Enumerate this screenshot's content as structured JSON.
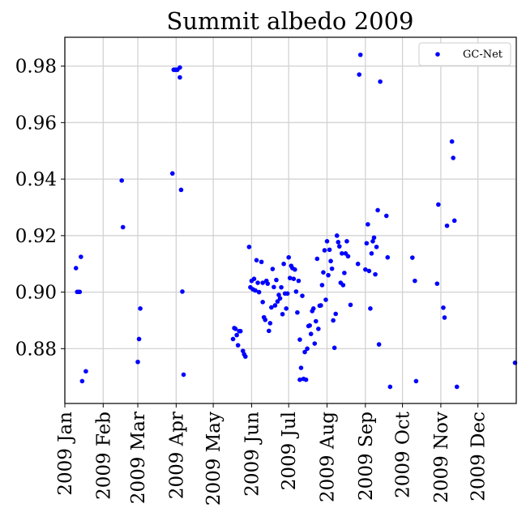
{
  "chart_data": {
    "type": "scatter",
    "title": "Summit albedo 2009",
    "xlabel": "",
    "ylabel": "",
    "xlim": [
      "2009-01-01",
      "2009-12-31"
    ],
    "ylim": [
      0.8606,
      0.9902
    ],
    "grid": true,
    "legend_position": "top-right",
    "x_ticks": [
      {
        "date": "2009-01-01",
        "label": "2009 Jan"
      },
      {
        "date": "2009-02-01",
        "label": "2009 Feb"
      },
      {
        "date": "2009-03-01",
        "label": "2009 Mar"
      },
      {
        "date": "2009-04-01",
        "label": "2009 Apr"
      },
      {
        "date": "2009-05-01",
        "label": "2009 May"
      },
      {
        "date": "2009-06-01",
        "label": "2009 Jun"
      },
      {
        "date": "2009-07-01",
        "label": "2009 Jul"
      },
      {
        "date": "2009-08-01",
        "label": "2009 Aug"
      },
      {
        "date": "2009-09-01",
        "label": "2009 Sep"
      },
      {
        "date": "2009-10-01",
        "label": "2009 Oct"
      },
      {
        "date": "2009-11-01",
        "label": "2009 Nov"
      },
      {
        "date": "2009-12-01",
        "label": "2009 Dec"
      }
    ],
    "y_ticks": [
      {
        "value": 0.88,
        "label": "0.88"
      },
      {
        "value": 0.9,
        "label": "0.90"
      },
      {
        "value": 0.92,
        "label": "0.92"
      },
      {
        "value": 0.94,
        "label": "0.94"
      },
      {
        "value": 0.96,
        "label": "0.96"
      },
      {
        "value": 0.98,
        "label": "0.98"
      }
    ],
    "series": [
      {
        "name": "GC-Net",
        "color": "#0000ff",
        "points": [
          [
            "2009-01-10",
            0.9085
          ],
          [
            "2009-01-11",
            0.9001
          ],
          [
            "2009-01-12",
            0.9001
          ],
          [
            "2009-01-13",
            0.9001
          ],
          [
            "2009-01-14",
            0.9125
          ],
          [
            "2009-01-15",
            0.8685
          ],
          [
            "2009-01-18",
            0.872
          ],
          [
            "2009-02-16",
            0.9395
          ],
          [
            "2009-02-17",
            0.923
          ],
          [
            "2009-03-01",
            0.8753
          ],
          [
            "2009-03-02",
            0.8834
          ],
          [
            "2009-03-03",
            0.8942
          ],
          [
            "2009-03-29",
            0.942
          ],
          [
            "2009-03-30",
            0.9787
          ],
          [
            "2009-03-31",
            0.9787
          ],
          [
            "2009-04-01",
            0.9787
          ],
          [
            "2009-04-02",
            0.9787
          ],
          [
            "2009-04-04",
            0.9795
          ],
          [
            "2009-04-04",
            0.976
          ],
          [
            "2009-04-05",
            0.9362
          ],
          [
            "2009-04-06",
            0.9002
          ],
          [
            "2009-04-07",
            0.8708
          ],
          [
            "2009-05-17",
            0.8834
          ],
          [
            "2009-05-18",
            0.8873
          ],
          [
            "2009-05-19",
            0.887
          ],
          [
            "2009-05-20",
            0.8848
          ],
          [
            "2009-05-21",
            0.8812
          ],
          [
            "2009-05-22",
            0.8862
          ],
          [
            "2009-05-23",
            0.8862
          ],
          [
            "2009-05-25",
            0.8792
          ],
          [
            "2009-05-26",
            0.878
          ],
          [
            "2009-05-27",
            0.8772
          ],
          [
            "2009-05-30",
            0.916
          ],
          [
            "2009-05-31",
            0.9017
          ],
          [
            "2009-06-01",
            0.904
          ],
          [
            "2009-06-02",
            0.901
          ],
          [
            "2009-06-03",
            0.9047
          ],
          [
            "2009-06-04",
            0.9006
          ],
          [
            "2009-06-05",
            0.9113
          ],
          [
            "2009-06-06",
            0.9033
          ],
          [
            "2009-06-07",
            0.9
          ],
          [
            "2009-06-09",
            0.9107
          ],
          [
            "2009-06-10",
            0.9033
          ],
          [
            "2009-06-10",
            0.8965
          ],
          [
            "2009-06-11",
            0.8911
          ],
          [
            "2009-06-12",
            0.8902
          ],
          [
            "2009-06-13",
            0.904
          ],
          [
            "2009-06-14",
            0.903
          ],
          [
            "2009-06-15",
            0.8863
          ],
          [
            "2009-06-16",
            0.889
          ],
          [
            "2009-06-17",
            0.8946
          ],
          [
            "2009-06-18",
            0.9082
          ],
          [
            "2009-06-19",
            0.9018
          ],
          [
            "2009-06-20",
            0.8953
          ],
          [
            "2009-06-21",
            0.9043
          ],
          [
            "2009-06-22",
            0.8967
          ],
          [
            "2009-06-23",
            0.899
          ],
          [
            "2009-06-24",
            0.8978
          ],
          [
            "2009-06-25",
            0.9017
          ],
          [
            "2009-06-26",
            0.8922
          ],
          [
            "2009-06-27",
            0.91
          ],
          [
            "2009-06-28",
            0.8995
          ],
          [
            "2009-06-29",
            0.8942
          ],
          [
            "2009-06-30",
            0.8995
          ],
          [
            "2009-07-01",
            0.9123
          ],
          [
            "2009-07-02",
            0.905
          ],
          [
            "2009-07-03",
            0.9093
          ],
          [
            "2009-07-04",
            0.9085
          ],
          [
            "2009-07-05",
            0.9047
          ],
          [
            "2009-07-06",
            0.908
          ],
          [
            "2009-07-07",
            0.9002
          ],
          [
            "2009-07-08",
            0.8928
          ],
          [
            "2009-07-09",
            0.904
          ],
          [
            "2009-07-10",
            0.8832
          ],
          [
            "2009-07-10",
            0.869
          ],
          [
            "2009-07-11",
            0.8732
          ],
          [
            "2009-07-12",
            0.8987
          ],
          [
            "2009-07-13",
            0.8693
          ],
          [
            "2009-07-14",
            0.8788
          ],
          [
            "2009-07-15",
            0.869
          ],
          [
            "2009-07-16",
            0.88
          ],
          [
            "2009-07-17",
            0.888
          ],
          [
            "2009-07-18",
            0.8882
          ],
          [
            "2009-07-19",
            0.8852
          ],
          [
            "2009-07-20",
            0.8933
          ],
          [
            "2009-07-21",
            0.8942
          ],
          [
            "2009-07-22",
            0.8818
          ],
          [
            "2009-07-23",
            0.8897
          ],
          [
            "2009-07-24",
            0.9118
          ],
          [
            "2009-07-25",
            0.887
          ],
          [
            "2009-07-26",
            0.8952
          ],
          [
            "2009-07-27",
            0.8953
          ],
          [
            "2009-07-28",
            0.9025
          ],
          [
            "2009-07-29",
            0.907
          ],
          [
            "2009-07-30",
            0.9148
          ],
          [
            "2009-07-31",
            0.8973
          ],
          [
            "2009-08-01",
            0.918
          ],
          [
            "2009-08-02",
            0.906
          ],
          [
            "2009-08-03",
            0.915
          ],
          [
            "2009-08-04",
            0.911
          ],
          [
            "2009-08-05",
            0.9083
          ],
          [
            "2009-08-06",
            0.89
          ],
          [
            "2009-08-07",
            0.8803
          ],
          [
            "2009-08-08",
            0.8923
          ],
          [
            "2009-08-09",
            0.92
          ],
          [
            "2009-08-10",
            0.9177
          ],
          [
            "2009-08-11",
            0.9162
          ],
          [
            "2009-08-12",
            0.9033
          ],
          [
            "2009-08-13",
            0.9137
          ],
          [
            "2009-08-14",
            0.9025
          ],
          [
            "2009-08-15",
            0.9068
          ],
          [
            "2009-08-16",
            0.9137
          ],
          [
            "2009-08-17",
            0.918
          ],
          [
            "2009-08-18",
            0.9127
          ],
          [
            "2009-08-20",
            0.8955
          ],
          [
            "2009-08-26",
            0.91
          ],
          [
            "2009-08-27",
            0.977
          ],
          [
            "2009-08-28",
            0.984
          ],
          [
            "2009-09-01",
            0.908
          ],
          [
            "2009-09-02",
            0.9173
          ],
          [
            "2009-09-03",
            0.924
          ],
          [
            "2009-09-04",
            0.9075
          ],
          [
            "2009-09-05",
            0.8942
          ],
          [
            "2009-09-06",
            0.9137
          ],
          [
            "2009-09-07",
            0.918
          ],
          [
            "2009-09-08",
            0.9193
          ],
          [
            "2009-09-09",
            0.9063
          ],
          [
            "2009-09-10",
            0.916
          ],
          [
            "2009-09-11",
            0.929
          ],
          [
            "2009-09-12",
            0.8815
          ],
          [
            "2009-09-13",
            0.9745
          ],
          [
            "2009-09-18",
            0.927
          ],
          [
            "2009-09-19",
            0.9123
          ],
          [
            "2009-09-21",
            0.8665
          ],
          [
            "2009-10-09",
            0.9122
          ],
          [
            "2009-10-11",
            0.904
          ],
          [
            "2009-10-12",
            0.8685
          ],
          [
            "2009-10-29",
            0.903
          ],
          [
            "2009-10-30",
            0.931
          ],
          [
            "2009-11-03",
            0.8945
          ],
          [
            "2009-11-04",
            0.891
          ],
          [
            "2009-11-06",
            0.9235
          ],
          [
            "2009-11-10",
            0.9533
          ],
          [
            "2009-11-11",
            0.9475
          ],
          [
            "2009-11-12",
            0.9253
          ],
          [
            "2009-11-14",
            0.8665
          ],
          [
            "2009-12-31",
            0.875
          ]
        ]
      }
    ]
  }
}
